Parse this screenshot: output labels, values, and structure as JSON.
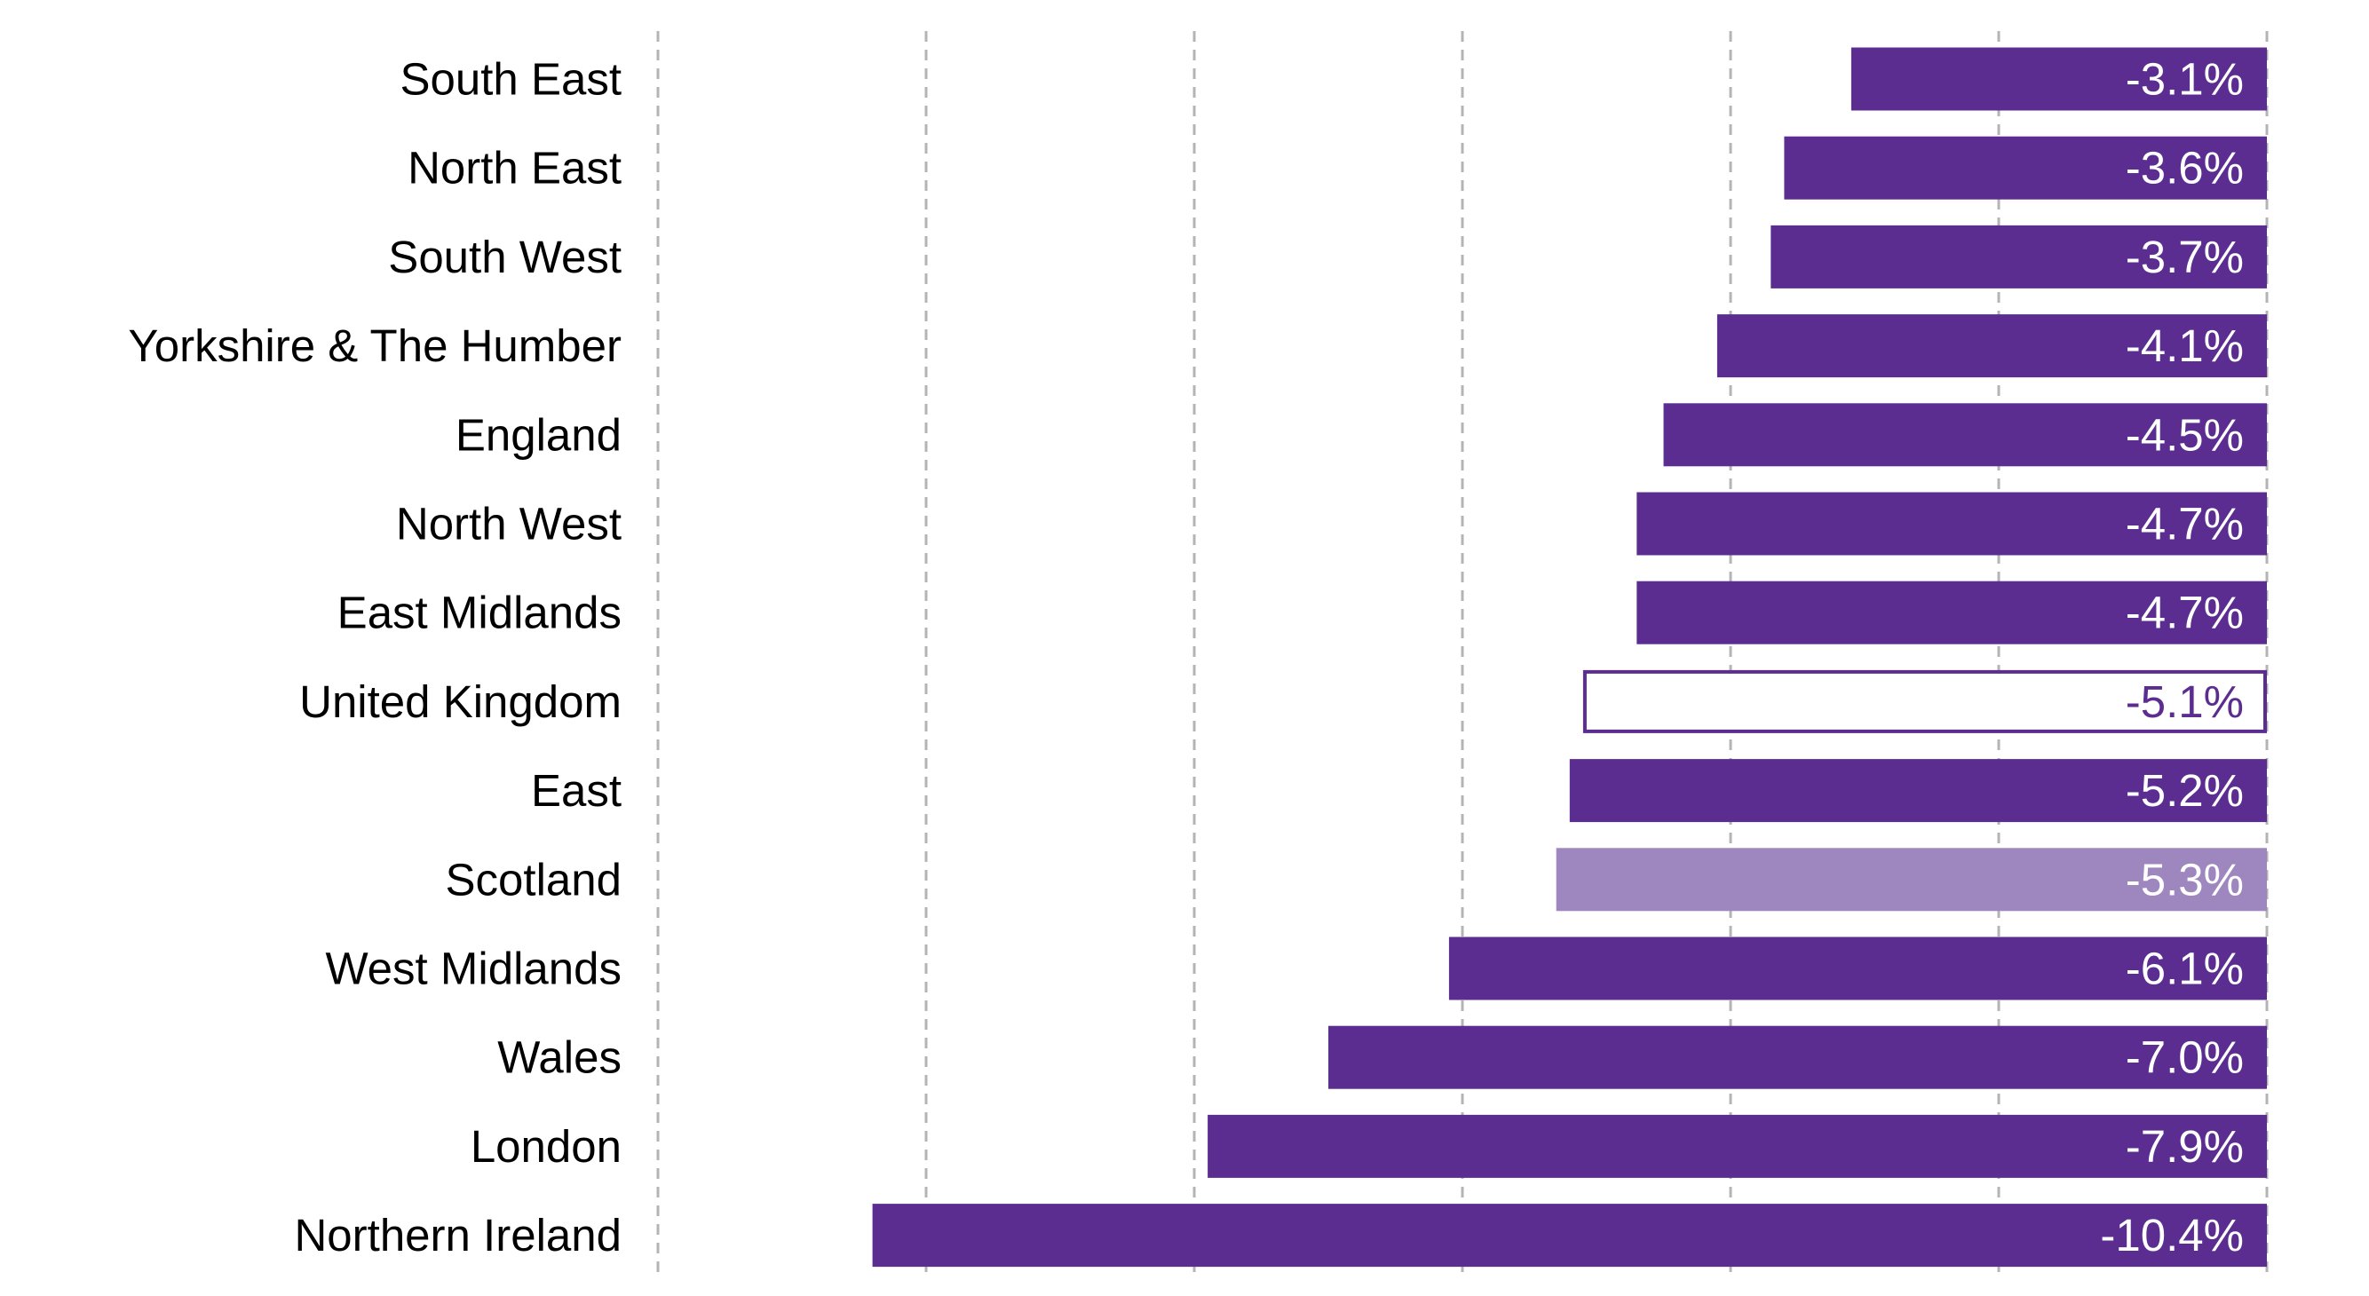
{
  "chart_data": {
    "type": "bar",
    "orientation": "horizontal",
    "categories": [
      "South East",
      "North East",
      "South West",
      "Yorkshire & The Humber",
      "England",
      "North West",
      "East Midlands",
      "United Kingdom",
      "East",
      "Scotland",
      "West Midlands",
      "Wales",
      "London",
      "Northern Ireland"
    ],
    "values": [
      -3.1,
      -3.6,
      -3.7,
      -4.1,
      -4.5,
      -4.7,
      -4.7,
      -5.1,
      -5.2,
      -5.3,
      -6.1,
      -7.0,
      -7.9,
      -10.4
    ],
    "value_labels": [
      "-3.1%",
      "-3.6%",
      "-3.7%",
      "-4.1%",
      "-4.5%",
      "-4.7%",
      "-4.7%",
      "-5.1%",
      "-5.2%",
      "-5.3%",
      "-6.1%",
      "-7.0%",
      "-7.9%",
      "-10.4%"
    ],
    "bar_styles": [
      "filled",
      "filled",
      "filled",
      "filled",
      "filled",
      "filled",
      "filled",
      "outline",
      "filled",
      "light",
      "filled",
      "filled",
      "filled",
      "filled"
    ],
    "xlim": [
      -12,
      0
    ],
    "grid_x": [
      -12,
      -10,
      -8,
      -6,
      -4,
      -2,
      0
    ],
    "grid": "vertical dashed",
    "legend": "none",
    "colors": {
      "filled": "#5c2d91",
      "light": "#9e87bf",
      "outline_stroke": "#5c2d91",
      "outline_fill": "#ffffff",
      "label_on_bar": "#ffffff",
      "label_on_outline": "#5c2d91",
      "category_text": "#000000",
      "grid": "#b4b4b4"
    }
  }
}
